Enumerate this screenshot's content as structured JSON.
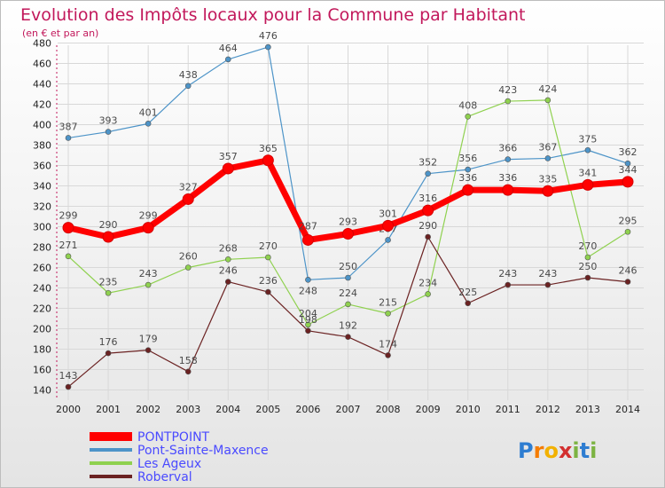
{
  "chart_data": {
    "type": "line",
    "title": "Evolution des Impôts locaux pour la Commune par Habitant",
    "subtitle": "(en € et par an)",
    "xlabel": "",
    "ylabel": "",
    "x": [
      "2000",
      "2001",
      "2002",
      "2003",
      "2004",
      "2005",
      "2006",
      "2007",
      "2008",
      "2009",
      "2010",
      "2011",
      "2012",
      "2013",
      "2014"
    ],
    "ylim": [
      130,
      490
    ],
    "yticks": [
      140,
      160,
      180,
      200,
      220,
      240,
      260,
      280,
      300,
      320,
      340,
      360,
      380,
      400,
      420,
      440,
      460,
      480
    ],
    "grid": true,
    "legend_position": "bottom-left",
    "series": [
      {
        "name": "Pont-Sainte-Maxence",
        "color": "#4d94c8",
        "values": [
          387,
          393,
          401,
          438,
          464,
          476,
          248,
          250,
          287,
          352,
          356,
          366,
          367,
          375,
          362
        ]
      },
      {
        "name": "Les Ageux",
        "color": "#8fd14f",
        "values": [
          271,
          235,
          243,
          260,
          268,
          270,
          204,
          224,
          215,
          234,
          408,
          423,
          424,
          270,
          295
        ]
      },
      {
        "name": "Roberval",
        "color": "#6b2222",
        "values": [
          143,
          176,
          179,
          158,
          246,
          236,
          198,
          192,
          174,
          290,
          225,
          243,
          243,
          250,
          246
        ]
      },
      {
        "name": "PONTPOINT",
        "color": "#ff0000",
        "values": [
          299,
          290,
          299,
          327,
          357,
          365,
          287,
          293,
          301,
          316,
          336,
          336,
          335,
          341,
          344
        ]
      }
    ]
  },
  "logo": {
    "text": "Proxiti"
  }
}
